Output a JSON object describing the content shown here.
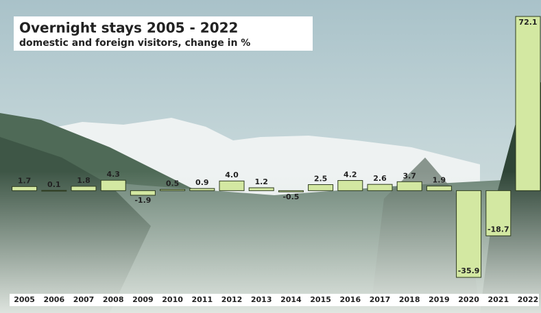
{
  "chart_data": {
    "type": "bar",
    "title": "Overnight stays 2005 - 2022",
    "subtitle": "domestic and foreign visitors, change in %",
    "categories": [
      "2005",
      "2006",
      "2007",
      "2008",
      "2009",
      "2010",
      "2011",
      "2012",
      "2013",
      "2014",
      "2015",
      "2016",
      "2017",
      "2018",
      "2019",
      "2020",
      "2021",
      "2022"
    ],
    "values": [
      1.7,
      0.1,
      1.8,
      4.3,
      -1.9,
      0.5,
      0.9,
      4.0,
      1.2,
      -0.5,
      2.5,
      4.2,
      2.6,
      3.7,
      1.9,
      -35.9,
      -18.7,
      72.1
    ],
    "value_labels": [
      "1.7",
      "0.1",
      "1.8",
      "4.3",
      "-1.9",
      "0.5",
      "0.9",
      "4.0",
      "1.2",
      "-0.5",
      "2.5",
      "4.2",
      "2.6",
      "3.7",
      "1.9",
      "-35.9",
      "-18.7",
      "72.1"
    ],
    "color": "#d3e8a2"
  }
}
